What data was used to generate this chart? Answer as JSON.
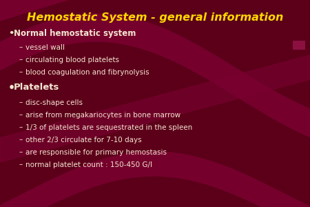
{
  "title": "Hemostatic System - general information",
  "title_color": "#FFD700",
  "bg_color": "#5C001A",
  "text_color": "#F5E6D0",
  "title_fontsize": 11.5,
  "body_fontsize": 7.5,
  "platelets_fontsize": 9.5,
  "bullet1_label": "Normal hemostatic system",
  "bullet1_items": [
    "vessel wall",
    "circulating blood platelets",
    "blood coagulation and fibrynolysis"
  ],
  "bullet2_label": "Platelets",
  "bullet2_items": [
    "disc-shape cells",
    "arise from megakariocytes in bone marrow",
    "1/3 of platelets are sequestrated in the spleen",
    "other 2/3 circulate for 7-10 days",
    "are responsible for primary hemostasis",
    "normal platelet count : 150-450 G/l"
  ],
  "wave_color": "#7A0030",
  "accent_color": "#8B1040"
}
